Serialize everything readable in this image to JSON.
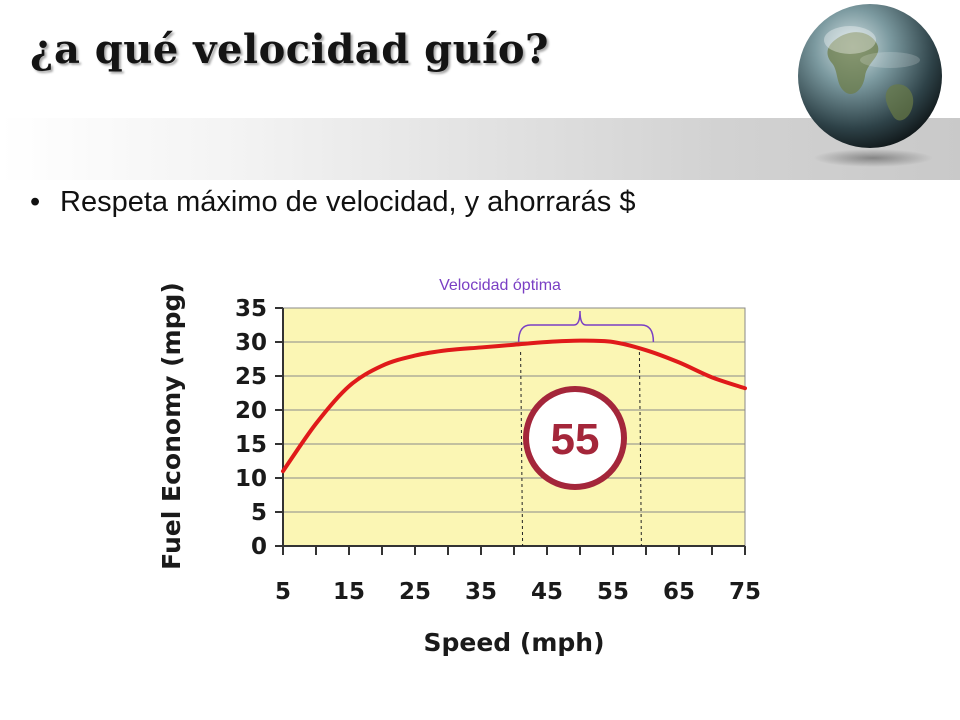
{
  "slide": {
    "title": "¿a qué velocidad guío?",
    "bullet": "Respeta máximo de velocidad, y ahorrarás $"
  },
  "annotation": {
    "range_label": "Velocidad óptima",
    "badge": "55",
    "range_start": 41,
    "range_end": 59,
    "label_color": "#7a3fc4",
    "badge_color": "#a4263a"
  },
  "chart_data": {
    "type": "line",
    "title": "",
    "xlabel": "Speed (mph)",
    "ylabel": "Fuel Economy (mpg)",
    "x": [
      5,
      10,
      15,
      20,
      25,
      30,
      35,
      40,
      45,
      50,
      55,
      60,
      65,
      70,
      75
    ],
    "xticks": [
      5,
      15,
      25,
      35,
      45,
      55,
      65,
      75
    ],
    "yticks": [
      0,
      5,
      10,
      15,
      20,
      25,
      30,
      35
    ],
    "xlim": [
      5,
      75
    ],
    "ylim": [
      0,
      35
    ],
    "grid": true,
    "series": [
      {
        "values": [
          11,
          18,
          23.5,
          26.5,
          28,
          28.8,
          29.2,
          29.6,
          30,
          30.2,
          30,
          28.8,
          27,
          24.8,
          23.2
        ],
        "color": "#e01a1a"
      }
    ],
    "plot_bg": "#fbf6b4"
  }
}
